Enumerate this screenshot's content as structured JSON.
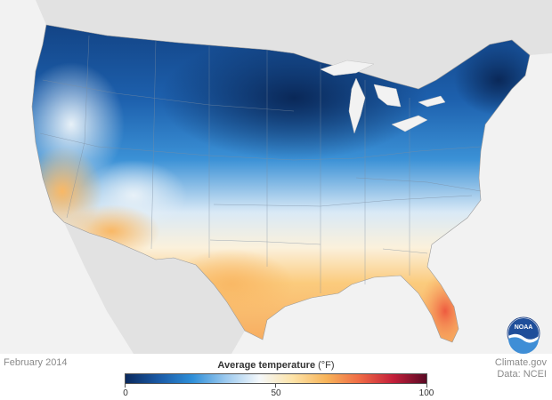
{
  "map": {
    "date_label": "February 2014",
    "credit_line1": "Climate.gov",
    "credit_line2": "Data: NCEI",
    "logo_text": "NOAA"
  },
  "legend": {
    "title": "Average temperature",
    "unit": "(°F)",
    "min": 0,
    "mid": 50,
    "max": 100,
    "colors": [
      "#0b2a5e",
      "#1a5aa6",
      "#2f8fd8",
      "#9cc9ee",
      "#f4f8fb",
      "#fde3a8",
      "#f7b45a",
      "#ef6a45",
      "#c41f3a",
      "#5a0a25"
    ]
  }
}
